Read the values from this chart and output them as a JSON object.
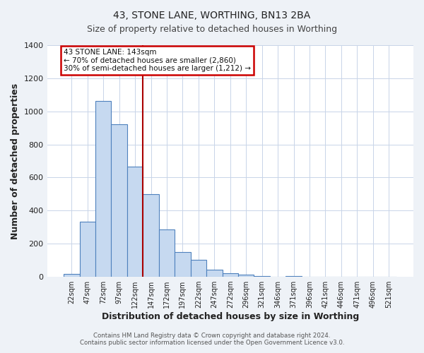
{
  "title": "43, STONE LANE, WORTHING, BN13 2BA",
  "subtitle": "Size of property relative to detached houses in Worthing",
  "xlabel": "Distribution of detached houses by size in Worthing",
  "ylabel": "Number of detached properties",
  "bar_labels": [
    "22sqm",
    "47sqm",
    "72sqm",
    "97sqm",
    "122sqm",
    "147sqm",
    "172sqm",
    "197sqm",
    "222sqm",
    "247sqm",
    "272sqm",
    "296sqm",
    "321sqm",
    "346sqm",
    "371sqm",
    "396sqm",
    "421sqm",
    "446sqm",
    "471sqm",
    "496sqm",
    "521sqm"
  ],
  "bar_values": [
    18,
    333,
    1063,
    921,
    668,
    500,
    288,
    148,
    102,
    42,
    22,
    15,
    5,
    0,
    5,
    0,
    0,
    0,
    0,
    0,
    0
  ],
  "bar_color": "#c6d9f0",
  "bar_edge_color": "#4f81bd",
  "vline_color": "#aa0000",
  "annotation_title": "43 STONE LANE: 143sqm",
  "annotation_line1": "← 70% of detached houses are smaller (2,860)",
  "annotation_line2": "30% of semi-detached houses are larger (1,212) →",
  "annotation_box_color": "#cc0000",
  "ylim": [
    0,
    1400
  ],
  "yticks": [
    0,
    200,
    400,
    600,
    800,
    1000,
    1200,
    1400
  ],
  "footer1": "Contains HM Land Registry data © Crown copyright and database right 2024.",
  "footer2": "Contains public sector information licensed under the Open Government Licence v3.0.",
  "background_color": "#eef2f7",
  "plot_bg_color": "#ffffff",
  "grid_color": "#c8d4e8"
}
